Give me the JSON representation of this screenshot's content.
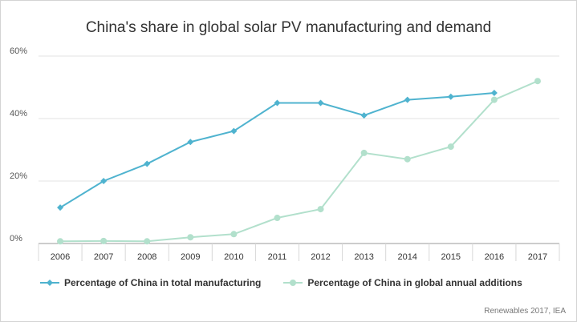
{
  "chart_data": {
    "type": "line",
    "title": "China's share in global solar PV manufacturing and demand",
    "categories": [
      "2006",
      "2007",
      "2008",
      "2009",
      "2010",
      "2011",
      "2012",
      "2013",
      "2014",
      "2015",
      "2016",
      "2017"
    ],
    "y_ticks": [
      "0%",
      "20%",
      "40%",
      "60%"
    ],
    "ylim": [
      0,
      60
    ],
    "grid": true,
    "legend_position": "bottom",
    "series": [
      {
        "name": "Percentage of China in total manufacturing",
        "color": "#4fb3cf",
        "marker": "diamond",
        "values": [
          11.5,
          20,
          25.5,
          32.5,
          36,
          45,
          45,
          41,
          46,
          47,
          48.2,
          null
        ]
      },
      {
        "name": "Percentage of China in global annual additions",
        "color": "#b2e0cc",
        "marker": "circle",
        "values": [
          0.7,
          0.8,
          0.7,
          2,
          3,
          8.2,
          11,
          29,
          27,
          31,
          46,
          52
        ]
      }
    ]
  },
  "source": "Renewables 2017, IEA"
}
